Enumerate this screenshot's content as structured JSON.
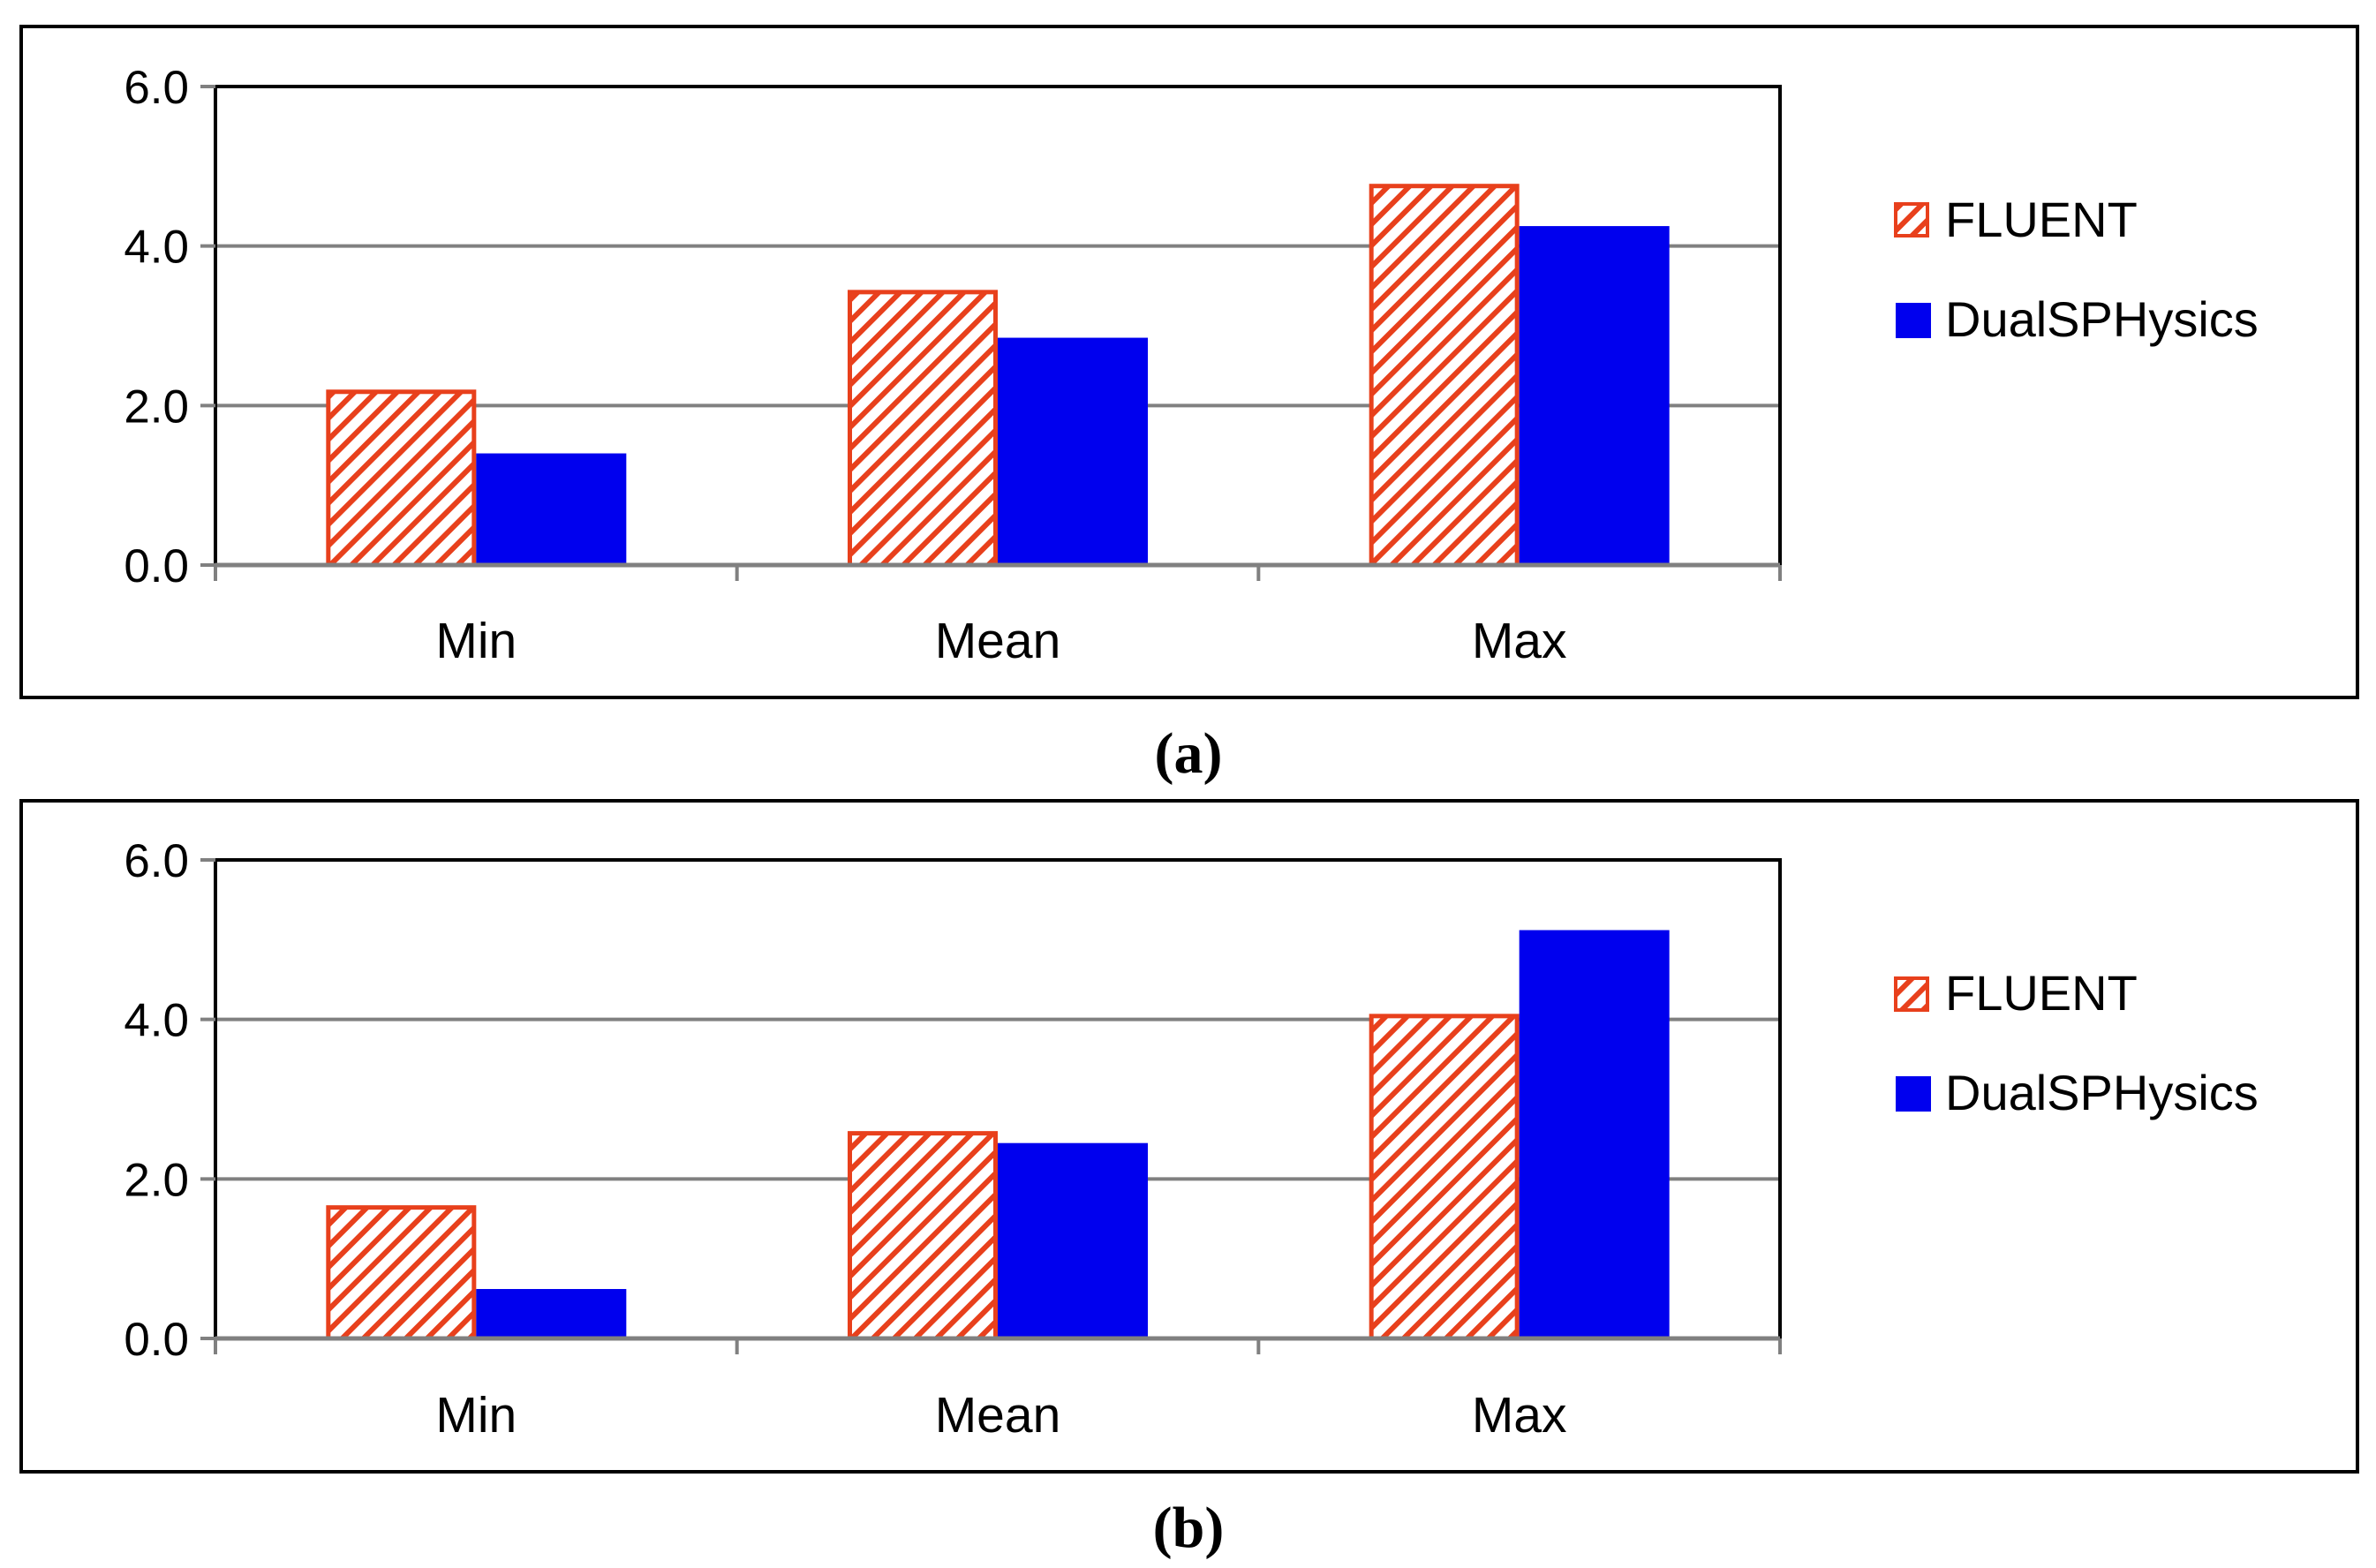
{
  "colors": {
    "fluent_stroke": "#e8401c",
    "fluent_hatch": "#e8401c",
    "dualsphysics_fill": "#0000ee",
    "grid": "#808080"
  },
  "chart_data": [
    {
      "type": "bar",
      "caption": "(a)",
      "categories": [
        "Min",
        "Mean",
        "Max"
      ],
      "series": [
        {
          "name": "FLUENT",
          "style": "hatched",
          "values": [
            2.2,
            3.45,
            4.78
          ]
        },
        {
          "name": "DualSPHysics",
          "style": "solid",
          "values": [
            1.4,
            2.85,
            4.25
          ]
        }
      ],
      "yticks": [
        "0.0",
        "2.0",
        "4.0",
        "6.0"
      ],
      "ylim": [
        0,
        6
      ],
      "grid": true,
      "legend": "right"
    },
    {
      "type": "bar",
      "caption": "(b)",
      "categories": [
        "Min",
        "Mean",
        "Max"
      ],
      "series": [
        {
          "name": "FLUENT",
          "style": "hatched",
          "values": [
            1.67,
            2.6,
            4.07
          ]
        },
        {
          "name": "DualSPHysics",
          "style": "solid",
          "values": [
            0.62,
            2.45,
            5.12
          ]
        }
      ],
      "yticks": [
        "0.0",
        "2.0",
        "4.0",
        "6.0"
      ],
      "ylim": [
        0,
        6
      ],
      "grid": true,
      "legend": "right"
    }
  ]
}
